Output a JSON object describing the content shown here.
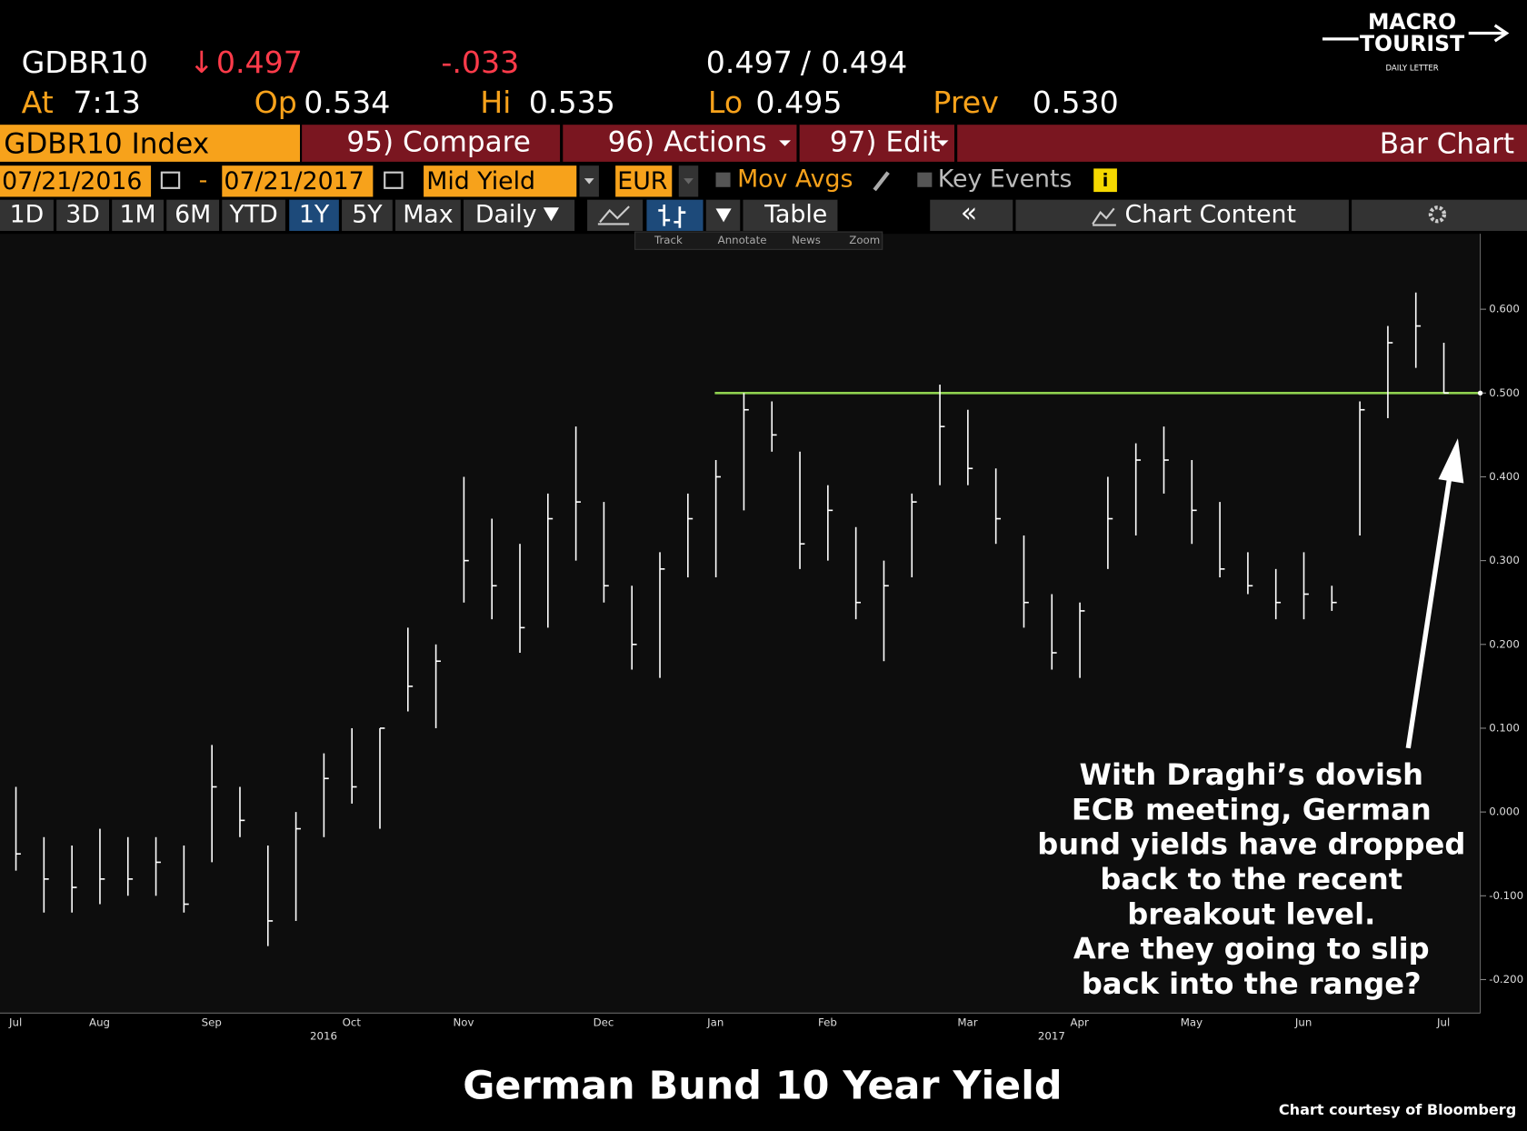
{
  "header": {
    "ticker": "GDBR10",
    "last_arrow": "↓",
    "last": "0.497",
    "change": "-.033",
    "bid": "0.497",
    "slash": "/",
    "ask": "0.494",
    "at_label": "At",
    "at": "7:13",
    "op_label": "Op",
    "op": "0.534",
    "hi_label": "Hi",
    "hi": "0.535",
    "lo_label": "Lo",
    "lo": "0.495",
    "prev_label": "Prev",
    "prev": "0.530"
  },
  "logo": {
    "line1": "MACRO",
    "line2": "TOURIST",
    "line3": "DAILY LETTER"
  },
  "toolbar": {
    "security": "GDBR10 Index",
    "compare": "95) Compare",
    "actions": "96) Actions",
    "edit": "97) Edit",
    "chart_kind": "Bar Chart",
    "start_date": "07/21/2016",
    "dash": "-",
    "end_date": "07/21/2017",
    "field": "Mid Yield",
    "currency": "EUR",
    "mov_avgs": "Mov Avgs",
    "key_events": "Key Events",
    "periods": [
      "1D",
      "3D",
      "1M",
      "6M",
      "YTD",
      "1Y",
      "5Y",
      "Max"
    ],
    "frequency": "Daily",
    "table": "Table",
    "chart_content": "Chart Content",
    "tools": [
      "Track",
      "Annotate",
      "News",
      "Zoom"
    ]
  },
  "chart_data": {
    "type": "ohlc",
    "title": "German Bund 10 Year Yield",
    "credit": "Chart courtesy of Bloomberg",
    "categories": [
      "Jul",
      null,
      null,
      "Aug",
      null,
      null,
      null,
      "Sep",
      null,
      null,
      null,
      null,
      "Oct",
      null,
      null,
      null,
      "Nov",
      null,
      null,
      null,
      null,
      "Dec",
      null,
      null,
      null,
      "Jan",
      null,
      null,
      null,
      "Feb",
      null,
      null,
      null,
      null,
      "Mar",
      null,
      null,
      null,
      "Apr",
      null,
      null,
      null,
      "May",
      null,
      null,
      null,
      "Jun",
      null,
      null,
      null,
      null,
      "Jul"
    ],
    "years": [
      null,
      null,
      null,
      null,
      null,
      null,
      null,
      null,
      null,
      null,
      null,
      "2016",
      null,
      null,
      null,
      null,
      null,
      null,
      null,
      null,
      null,
      null,
      null,
      null,
      null,
      null,
      null,
      null,
      null,
      null,
      null,
      null,
      null,
      null,
      null,
      null,
      null,
      "2017",
      null,
      null,
      null,
      null,
      null,
      null,
      null,
      null,
      null,
      null,
      null,
      null,
      null,
      null
    ],
    "high": [
      0.03,
      -0.03,
      -0.04,
      -0.02,
      -0.03,
      -0.03,
      -0.04,
      0.08,
      0.03,
      -0.04,
      0.0,
      0.07,
      0.1,
      0.1,
      0.22,
      0.2,
      0.4,
      0.35,
      0.32,
      0.38,
      0.46,
      0.37,
      0.27,
      0.31,
      0.38,
      0.42,
      0.5,
      0.49,
      0.43,
      0.39,
      0.34,
      0.3,
      0.38,
      0.51,
      0.48,
      0.41,
      0.33,
      0.26,
      0.25,
      0.4,
      0.44,
      0.46,
      0.42,
      0.37,
      0.31,
      0.29,
      0.31,
      0.27,
      0.49,
      0.58,
      0.62,
      0.56
    ],
    "low": [
      -0.07,
      -0.12,
      -0.12,
      -0.11,
      -0.1,
      -0.1,
      -0.12,
      -0.06,
      -0.03,
      -0.16,
      -0.13,
      -0.03,
      0.01,
      -0.02,
      0.12,
      0.1,
      0.25,
      0.23,
      0.19,
      0.22,
      0.3,
      0.25,
      0.17,
      0.16,
      0.28,
      0.28,
      0.36,
      0.43,
      0.29,
      0.3,
      0.23,
      0.18,
      0.28,
      0.39,
      0.39,
      0.32,
      0.22,
      0.17,
      0.16,
      0.29,
      0.33,
      0.38,
      0.32,
      0.28,
      0.26,
      0.23,
      0.23,
      0.24,
      0.33,
      0.47,
      0.53,
      0.5
    ],
    "close": [
      -0.05,
      -0.08,
      -0.09,
      -0.08,
      -0.08,
      -0.06,
      -0.11,
      0.03,
      -0.01,
      -0.13,
      -0.02,
      0.04,
      0.03,
      0.1,
      0.15,
      0.18,
      0.3,
      0.27,
      0.22,
      0.35,
      0.37,
      0.27,
      0.2,
      0.29,
      0.35,
      0.4,
      0.48,
      0.45,
      0.32,
      0.36,
      0.25,
      0.27,
      0.37,
      0.46,
      0.41,
      0.35,
      0.25,
      0.19,
      0.24,
      0.35,
      0.42,
      0.42,
      0.36,
      0.29,
      0.27,
      0.25,
      0.26,
      0.25,
      0.48,
      0.56,
      0.58,
      0.5
    ],
    "color": "#ffffff",
    "reference_line": {
      "value": 0.5,
      "color": "#8fd14f"
    },
    "ylim": [
      -0.24,
      0.69
    ],
    "yticks": [
      {
        "value": -0.2,
        "label": "-0.200"
      },
      {
        "value": -0.1,
        "label": "-0.100"
      },
      {
        "value": 0,
        "label": "0.000"
      },
      {
        "value": 0.1,
        "label": "0.100"
      },
      {
        "value": 0.2,
        "label": "0.200"
      },
      {
        "value": 0.3,
        "label": "0.300"
      },
      {
        "value": 0.4,
        "label": "0.400"
      },
      {
        "value": 0.5,
        "label": "0.500"
      },
      {
        "value": 0.6,
        "label": "0.600"
      }
    ],
    "annotation": [
      "With Draghi’s dovish",
      "ECB meeting, German",
      "bund yields have dropped",
      "back to the recent",
      "breakout level.",
      "Are they going to slip",
      "back into the range?"
    ]
  }
}
